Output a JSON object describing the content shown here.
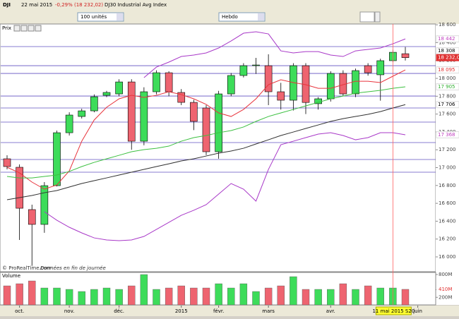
{
  "header": {
    "symbol": "DJI",
    "date": "22 mai 2015",
    "change": "-0,29% (18 232,02)",
    "name": "DJ30 Industrial Avg Index",
    "size": "100 unités",
    "period": "Hebdo",
    "watermark": "© ProRealTime.com",
    "note": "Données en fin de journée"
  },
  "chart_data": {
    "type": "candlestick",
    "title": "Prix",
    "ohlc": {
      "open": [
        17099,
        17004,
        16530,
        16364,
        16798,
        17391,
        17573,
        17636,
        17810,
        17826,
        17960,
        17296,
        17850,
        18063,
        17842,
        17731,
        17668,
        17178,
        17826,
        18032,
        18142,
        18142,
        17850,
        17755,
        18142,
        17716,
        17771,
        18055,
        17826,
        18142,
        18040,
        18198,
        18276
      ],
      "high": [
        17138,
        17036,
        16585,
        16838,
        17415,
        17620,
        17660,
        17820,
        17860,
        17990,
        17990,
        17900,
        18090,
        18080,
        17880,
        17760,
        17700,
        17860,
        18060,
        18170,
        18230,
        18270,
        17950,
        18170,
        18170,
        17790,
        18080,
        18090,
        18110,
        18170,
        18220,
        18320,
        18351
      ],
      "low": [
        16980,
        16190,
        15900,
        16270,
        16790,
        17360,
        17550,
        17620,
        17790,
        17800,
        17200,
        17250,
        17820,
        17800,
        17700,
        17420,
        17140,
        17100,
        17800,
        18010,
        18050,
        17700,
        17650,
        17640,
        17600,
        17650,
        17740,
        17800,
        17790,
        18030,
        17750,
        18180,
        18200
      ],
      "close": [
        17012,
        16545,
        16364,
        16798,
        17391,
        17589,
        17636,
        17794,
        17842,
        17960,
        17296,
        17850,
        18063,
        17850,
        17731,
        17518,
        17178,
        17826,
        18032,
        18142,
        18150,
        17850,
        17755,
        18142,
        17730,
        17771,
        18055,
        17826,
        18087,
        18063,
        18198,
        18292,
        18232.02
      ]
    },
    "up_color": "#3ddc5a",
    "down_color": "#ee6470",
    "overlays": [
      {
        "color": "#e8343c",
        "values": [
          17004,
          16941,
          16838,
          16759,
          16806,
          16964,
          17296,
          17534,
          17676,
          17771,
          17810,
          17787,
          17810,
          17850,
          17818,
          17771,
          17708,
          17613,
          17573,
          17652,
          17771,
          17929,
          17984,
          17953,
          17929,
          17889,
          17889,
          17929,
          17968,
          17968,
          17953,
          18024,
          18095
        ]
      },
      {
        "color": "#3cc040",
        "values": [
          16901,
          16885,
          16885,
          16901,
          16917,
          16957,
          17012,
          17059,
          17099,
          17138,
          17178,
          17202,
          17217,
          17241,
          17296,
          17336,
          17360,
          17391,
          17415,
          17455,
          17518,
          17573,
          17613,
          17652,
          17692,
          17731,
          17771,
          17802,
          17834,
          17850,
          17866,
          17889,
          17905
        ]
      },
      {
        "color": "#303030",
        "values": [
          16640,
          16664,
          16688,
          16719,
          16743,
          16783,
          16822,
          16854,
          16885,
          16917,
          16949,
          16980,
          17012,
          17043,
          17075,
          17099,
          17130,
          17162,
          17186,
          17217,
          17265,
          17312,
          17360,
          17399,
          17439,
          17478,
          17518,
          17549,
          17573,
          17597,
          17628,
          17668,
          17706
        ]
      },
      {
        "color": "#a838c8",
        "values": [
          null,
          null,
          null,
          null,
          null,
          null,
          null,
          null,
          null,
          null,
          null,
          18008,
          18126,
          18182,
          18245,
          18261,
          18285,
          18340,
          18419,
          18506,
          18522,
          18498,
          18308,
          18285,
          18300,
          18300,
          18261,
          18245,
          18308,
          18324,
          18340,
          18387,
          18442
        ]
      },
      {
        "color": "#a838c8",
        "values": [
          null,
          null,
          null,
          16506,
          16411,
          16332,
          16269,
          16213,
          16190,
          16182,
          16190,
          16229,
          16308,
          16387,
          16466,
          16522,
          16585,
          16704,
          16822,
          16759,
          16625,
          16980,
          17257,
          17296,
          17336,
          17376,
          17391,
          17360,
          17312,
          17336,
          17391,
          17391,
          17368
        ]
      }
    ],
    "levels": [
      18356,
      18142,
      18055,
      17802,
      17668,
      17510,
      17281,
      17091,
      16949
    ],
    "level_color": "#6050c0",
    "ylim": [
      15834,
      18609
    ],
    "yticks": [
      {
        "value": 18600,
        "label": "18 600"
      },
      {
        "value": 18400,
        "label": "18 400"
      },
      {
        "value": 18200,
        "label": "18 200"
      },
      {
        "value": 18000,
        "label": "18 000"
      },
      {
        "value": 17800,
        "label": "17 800"
      },
      {
        "value": 17600,
        "label": "17 600"
      },
      {
        "value": 17400,
        "label": "17 400"
      },
      {
        "value": 17200,
        "label": "17 200"
      },
      {
        "value": 17000,
        "label": "17 000"
      },
      {
        "value": 16800,
        "label": "16 800"
      },
      {
        "value": 16600,
        "label": "16 600"
      },
      {
        "value": 16400,
        "label": "16 400"
      },
      {
        "value": 16200,
        "label": "16 200"
      },
      {
        "value": 16000,
        "label": "16 000"
      }
    ],
    "price_tags": [
      {
        "value": 18442,
        "label": "18 442",
        "color": "#c040c0",
        "bg": "#ffffff"
      },
      {
        "value": 18308,
        "label": "18 308",
        "color": "#000000",
        "bg": "#ffffff"
      },
      {
        "value": 18232.02,
        "label": "18 232,02",
        "color": "#ffffff",
        "bg": "#e03030"
      },
      {
        "value": 18095,
        "label": "18 095",
        "color": "#e03030",
        "bg": "#ffffff"
      },
      {
        "value": 17905,
        "label": "17 905",
        "color": "#30b030",
        "bg": "#ffffff"
      },
      {
        "value": 17706,
        "label": "17 706",
        "color": "#000000",
        "bg": "#ffffff"
      },
      {
        "value": 17368,
        "label": "17 368",
        "color": "#c040c0",
        "bg": "#ffffff"
      }
    ],
    "xticks": [
      {
        "value": 1,
        "label": "oct."
      },
      {
        "value": 5,
        "label": "nov."
      },
      {
        "value": 9,
        "label": "déc."
      },
      {
        "value": 14,
        "label": "2015"
      },
      {
        "value": 17,
        "label": "févr."
      },
      {
        "value": 21,
        "label": "mars"
      },
      {
        "value": 26,
        "label": "avr."
      },
      {
        "value": 33,
        "label": "juin"
      }
    ],
    "cursor": {
      "value": 31,
      "label": "11 mai 2015 S20"
    },
    "volume": {
      "title": "Volume",
      "values": [
        502,
        558,
        632,
        446,
        446,
        409,
        353,
        409,
        446,
        409,
        502,
        800,
        409,
        446,
        502,
        446,
        446,
        558,
        446,
        558,
        353,
        446,
        502,
        744,
        409,
        409,
        409,
        558,
        409,
        502,
        446,
        446,
        410
      ],
      "ylim": [
        0,
        856
      ],
      "yticks": [
        {
          "value": 800,
          "label": "800M"
        },
        {
          "value": 400,
          "label": "400M"
        },
        {
          "value": 200,
          "label": "200M"
        }
      ],
      "tag": {
        "value": 410,
        "label": "410M"
      }
    }
  }
}
